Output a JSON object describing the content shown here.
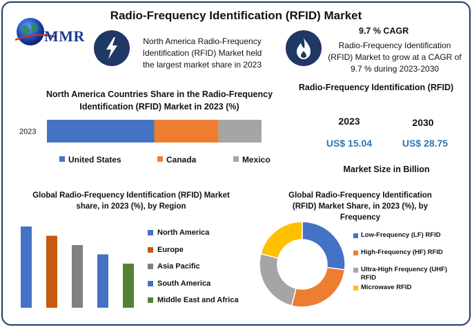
{
  "header": {
    "title": "Radio-Frequency Identification (RFID) Market",
    "logo_text": "MMR"
  },
  "info_left": {
    "icon": "lightning-icon",
    "text": "North America Radio-Frequency Identification (RFID) Market held the largest market share in 2023"
  },
  "info_right": {
    "icon": "flame-icon",
    "cagr": "9.7 % CAGR",
    "text": "Radio-Frequency Identification (RFID) Market to grow at a CAGR of 9.7 % during 2023-2030"
  },
  "market_size": {
    "title": "Radio-Frequency Identification (RFID)",
    "years": [
      "2023",
      "2030"
    ],
    "values": [
      "US$ 15.04",
      "US$ 28.75"
    ],
    "footer": "Market Size in Billion"
  },
  "colors": {
    "blue": "#4472c4",
    "orange": "#ed7d31",
    "gray": "#a5a5a5",
    "yellow": "#ffc000",
    "dark_orange": "#c55a11",
    "green": "#548235",
    "navy": "#1f3864"
  },
  "chart_data": [
    {
      "type": "bar",
      "orientation": "horizontal-stacked",
      "title": "North America Countries Share in the Radio-Frequency Identification (RFID) Market in 2023 (%)",
      "categories": [
        "2023"
      ],
      "series": [
        {
          "name": "United States",
          "values": [
            50
          ],
          "color": "#4472c4"
        },
        {
          "name": "Canada",
          "values": [
            30
          ],
          "color": "#ed7d31"
        },
        {
          "name": "Mexico",
          "values": [
            20
          ],
          "color": "#a5a5a5"
        }
      ],
      "legend": "bottom"
    },
    {
      "type": "bar",
      "title": "Global Radio-Frequency Identification (RFID) Market share, in 2023 (%), by Region",
      "categories": [
        "North America",
        "Europe",
        "Asia Pacific",
        "South America",
        "Middle East and Africa"
      ],
      "values": [
        35,
        31,
        27,
        23,
        19
      ],
      "colors": [
        "#4472c4",
        "#c55a11",
        "#808080",
        "#4472c4",
        "#548235"
      ],
      "legend": "right"
    },
    {
      "type": "pie",
      "donut": true,
      "title": "Global Radio-Frequency Identification (RFID) Market Share, in 2023 (%), by Frequency",
      "labels": [
        "Low-Frequency (LF) RFID",
        "High-Frequency (HF) RFID",
        "Ultra-High Frequency (UHF) RFID",
        "Microwave RFID"
      ],
      "values": [
        27,
        27,
        25,
        21
      ],
      "colors": [
        "#4472c4",
        "#ed7d31",
        "#a5a5a5",
        "#ffc000"
      ],
      "legend": "right"
    }
  ]
}
